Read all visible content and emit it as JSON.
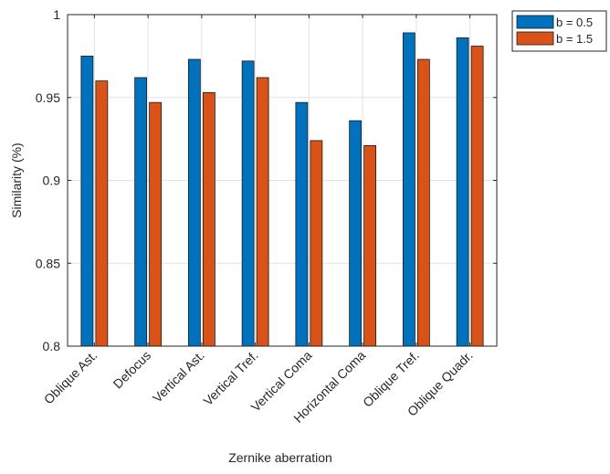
{
  "chart_data": {
    "type": "bar",
    "title": "",
    "xlabel": "Zernike aberration",
    "ylabel": "Similarity (%)",
    "ylim": [
      0.8,
      1.0
    ],
    "yticks": [
      0.8,
      0.85,
      0.9,
      0.95,
      1.0
    ],
    "ytick_labels": [
      "0.8",
      "0.85",
      "0.9",
      "0.95",
      "1"
    ],
    "grid": true,
    "legend_position": "outside-top-right",
    "categories": [
      "Oblique Ast.",
      "Defocus",
      "Vertical Ast.",
      "Vertical Tref.",
      "Vertical Coma",
      "Horizontal Coma",
      "Oblique Tref.",
      "Oblique Quadr."
    ],
    "series": [
      {
        "name": "b = 0.5",
        "color": "#0072BD",
        "values": [
          0.975,
          0.962,
          0.973,
          0.972,
          0.947,
          0.936,
          0.989,
          0.986
        ]
      },
      {
        "name": "b = 1.5",
        "color": "#D95319",
        "values": [
          0.96,
          0.947,
          0.953,
          0.962,
          0.924,
          0.921,
          0.973,
          0.981
        ]
      }
    ]
  }
}
